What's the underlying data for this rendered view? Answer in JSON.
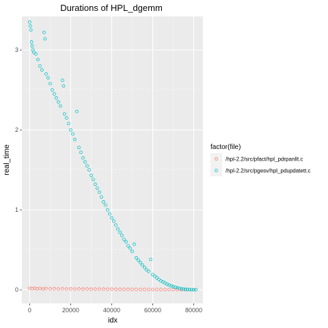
{
  "chart_data": {
    "type": "scatter",
    "title": "Durations of HPL_dgemm",
    "xlabel": "idx",
    "ylabel": "real_time",
    "xlim": [
      -3800,
      84500
    ],
    "ylim": [
      -0.17,
      3.42
    ],
    "x_ticks": [
      0,
      20000,
      40000,
      60000,
      80000
    ],
    "x_tick_labels": [
      "0",
      "20000",
      "40000",
      "60000",
      "80000"
    ],
    "y_ticks": [
      0,
      1,
      2,
      3
    ],
    "y_tick_labels": [
      "0",
      "1",
      "2",
      "3"
    ],
    "grid": true,
    "legend": {
      "title": "factor(file)",
      "position": "right"
    },
    "series": [
      {
        "name": "/hpl-2.2/src/pfact/hpl_pdrpanllt.c",
        "color": "#F8766D",
        "marker": "open-circle",
        "points": [
          [
            0,
            0.02
          ],
          [
            1200,
            0.015
          ],
          [
            2400,
            0.02
          ],
          [
            3600,
            0.012
          ],
          [
            5000,
            0.018
          ],
          [
            6500,
            0.01
          ],
          [
            8000,
            0.016
          ],
          [
            10000,
            0.012
          ],
          [
            12000,
            0.014
          ],
          [
            14000,
            0.01
          ],
          [
            16000,
            0.013
          ],
          [
            18000,
            0.01
          ],
          [
            20000,
            0.012
          ],
          [
            22000,
            0.009
          ],
          [
            24000,
            0.011
          ],
          [
            26000,
            0.009
          ],
          [
            28000,
            0.01
          ],
          [
            30000,
            0.008
          ],
          [
            32000,
            0.009
          ],
          [
            34000,
            0.008
          ],
          [
            36000,
            0.009
          ],
          [
            38000,
            0.007
          ],
          [
            40000,
            0.008
          ],
          [
            42000,
            0.007
          ],
          [
            44000,
            0.007
          ],
          [
            46000,
            0.006
          ],
          [
            48000,
            0.007
          ],
          [
            50000,
            0.006
          ],
          [
            52000,
            0.006
          ],
          [
            54000,
            0.005
          ],
          [
            56000,
            0.005
          ],
          [
            58000,
            0.005
          ],
          [
            60000,
            0.004
          ],
          [
            62000,
            0.004
          ],
          [
            64000,
            0.004
          ],
          [
            66000,
            0.003
          ],
          [
            68000,
            0.003
          ],
          [
            70000,
            0.003
          ],
          [
            72000,
            0.002
          ],
          [
            74000,
            0.002
          ],
          [
            76000,
            0.002
          ],
          [
            78000,
            0.001
          ],
          [
            80000,
            0.001
          ],
          [
            81000,
            0.001
          ]
        ]
      },
      {
        "name": "/hpl-2.2/src/pgesv/hpl_pdupdatett.c",
        "color": "#00BFC4",
        "marker": "open-circle",
        "points": [
          [
            0,
            3.35
          ],
          [
            300,
            3.3
          ],
          [
            600,
            3.25
          ],
          [
            900,
            3.1
          ],
          [
            1200,
            3.05
          ],
          [
            1600,
            3.0
          ],
          [
            2000,
            2.97
          ],
          [
            3000,
            2.95
          ],
          [
            4000,
            2.88
          ],
          [
            5000,
            2.8
          ],
          [
            6000,
            2.75
          ],
          [
            7000,
            3.22
          ],
          [
            7500,
            3.14
          ],
          [
            8000,
            2.7
          ],
          [
            9000,
            2.65
          ],
          [
            10000,
            2.58
          ],
          [
            11000,
            2.5
          ],
          [
            12000,
            2.45
          ],
          [
            13000,
            2.4
          ],
          [
            14000,
            2.35
          ],
          [
            15000,
            2.3
          ],
          [
            16000,
            2.62
          ],
          [
            16500,
            2.55
          ],
          [
            17000,
            2.2
          ],
          [
            18000,
            2.15
          ],
          [
            19000,
            2.08
          ],
          [
            20000,
            2.0
          ],
          [
            21000,
            1.95
          ],
          [
            22000,
            1.88
          ],
          [
            23000,
            2.23
          ],
          [
            24000,
            1.78
          ],
          [
            25000,
            1.72
          ],
          [
            26000,
            1.65
          ],
          [
            27000,
            1.6
          ],
          [
            28000,
            1.55
          ],
          [
            29000,
            1.5
          ],
          [
            30000,
            1.43
          ],
          [
            31000,
            1.38
          ],
          [
            32000,
            1.32
          ],
          [
            33000,
            1.27
          ],
          [
            34000,
            1.22
          ],
          [
            35000,
            1.16
          ],
          [
            36000,
            1.1
          ],
          [
            37000,
            1.06
          ],
          [
            38000,
            1.0
          ],
          [
            39000,
            0.95
          ],
          [
            40000,
            0.9
          ],
          [
            41000,
            0.86
          ],
          [
            42000,
            0.81
          ],
          [
            43000,
            0.76
          ],
          [
            44000,
            0.72
          ],
          [
            45000,
            0.68
          ],
          [
            46000,
            0.63
          ],
          [
            47000,
            0.6
          ],
          [
            48000,
            0.55
          ],
          [
            49000,
            0.52
          ],
          [
            50000,
            0.48
          ],
          [
            51000,
            0.57
          ],
          [
            52000,
            0.4
          ],
          [
            53000,
            0.37
          ],
          [
            54000,
            0.34
          ],
          [
            55000,
            0.31
          ],
          [
            56000,
            0.28
          ],
          [
            57000,
            0.25
          ],
          [
            58000,
            0.23
          ],
          [
            59000,
            0.38
          ],
          [
            60000,
            0.19
          ],
          [
            61000,
            0.17
          ],
          [
            62000,
            0.15
          ],
          [
            63000,
            0.13
          ],
          [
            64000,
            0.11
          ],
          [
            65000,
            0.1
          ],
          [
            66000,
            0.085
          ],
          [
            67000,
            0.07
          ],
          [
            68000,
            0.06
          ],
          [
            69000,
            0.05
          ],
          [
            70000,
            0.04
          ],
          [
            71000,
            0.032
          ],
          [
            72000,
            0.025
          ],
          [
            73000,
            0.018
          ],
          [
            74000,
            0.013
          ],
          [
            75000,
            0.009
          ],
          [
            76000,
            0.006
          ],
          [
            77000,
            0.004
          ],
          [
            78000,
            0.002
          ],
          [
            79000,
            0.001
          ],
          [
            80000,
            0.0
          ],
          [
            81000,
            0.0
          ]
        ]
      }
    ]
  }
}
